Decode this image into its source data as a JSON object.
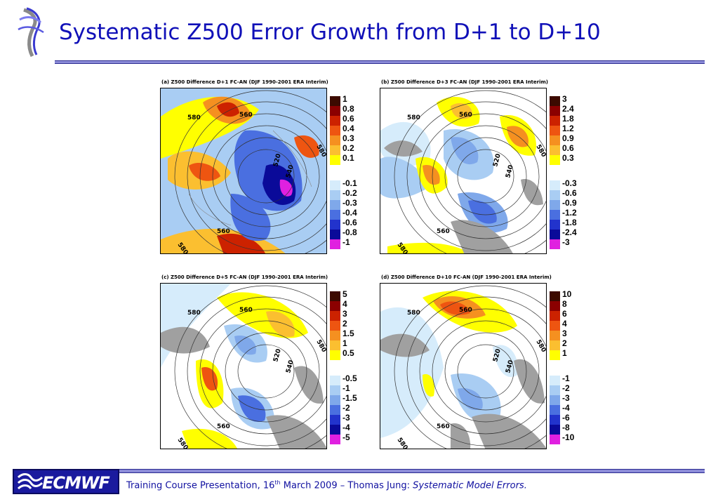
{
  "slide": {
    "title": "Systematic Z500 Error Growth from D+1 to D+10"
  },
  "footer": {
    "logo_text": "ECMWF",
    "text_prefix": "Training Course Presentation, 16",
    "text_sup": "th",
    "text_middle": " March 2009 – Thomas Jung: ",
    "text_italic": "Systematic Model Errors."
  },
  "colors": {
    "title": "#1010b8",
    "rule": "#8c8cd8",
    "logo_bg": "#1a1a9e"
  },
  "panels": [
    {
      "title": "(a) Z500 Difference D+1 FC-AN (DJF 1990-2001 ERA Interim)",
      "legend_pos": [
        "1",
        "0.8",
        "0.6",
        "0.4",
        "0.3",
        "0.2",
        "0.1"
      ],
      "legend_neg": [
        "-0.1",
        "-0.2",
        "-0.3",
        "-0.4",
        "-0.6",
        "-0.8",
        "-1"
      ],
      "contour_labels": [
        "560",
        "580",
        "520",
        "540",
        "580",
        "560",
        "580"
      ]
    },
    {
      "title": "(b) Z500 Difference D+3 FC-AN (DJF 1990-2001 ERA Interim)",
      "legend_pos": [
        "3",
        "2.4",
        "1.8",
        "1.2",
        "0.9",
        "0.6",
        "0.3"
      ],
      "legend_neg": [
        "-0.3",
        "-0.6",
        "-0.9",
        "-1.2",
        "-1.8",
        "-2.4",
        "-3"
      ],
      "contour_labels": [
        "560",
        "580",
        "520",
        "540",
        "580",
        "560",
        "580"
      ]
    },
    {
      "title": "(c) Z500 Difference D+5 FC-AN (DJF 1990-2001 ERA Interim)",
      "legend_pos": [
        "5",
        "4",
        "3",
        "2",
        "1.5",
        "1",
        "0.5"
      ],
      "legend_neg": [
        "-0.5",
        "-1",
        "-1.5",
        "-2",
        "-3",
        "-4",
        "-5"
      ],
      "contour_labels": [
        "560",
        "580",
        "520",
        "540",
        "580",
        "560",
        "580"
      ]
    },
    {
      "title": "(d) Z500 Difference D+10 FC-AN (DJF 1990-2001 ERA Interim)",
      "legend_pos": [
        "10",
        "8",
        "6",
        "4",
        "3",
        "2",
        "1"
      ],
      "legend_neg": [
        "-1",
        "-2",
        "-3",
        "-4",
        "-6",
        "-8",
        "-10"
      ],
      "contour_labels": [
        "560",
        "580",
        "520",
        "540",
        "580",
        "560",
        "580"
      ]
    }
  ],
  "legend_colors_pos": [
    "#3c0a00",
    "#8b0000",
    "#cc2200",
    "#ee5511",
    "#f59020",
    "#fbbf30",
    "#ffff00"
  ],
  "legend_colors_neg": [
    "#d6ecfb",
    "#a9cdf3",
    "#7fa8ea",
    "#4a6fe0",
    "#2233cc",
    "#0a0a99",
    "#e020e0"
  ]
}
